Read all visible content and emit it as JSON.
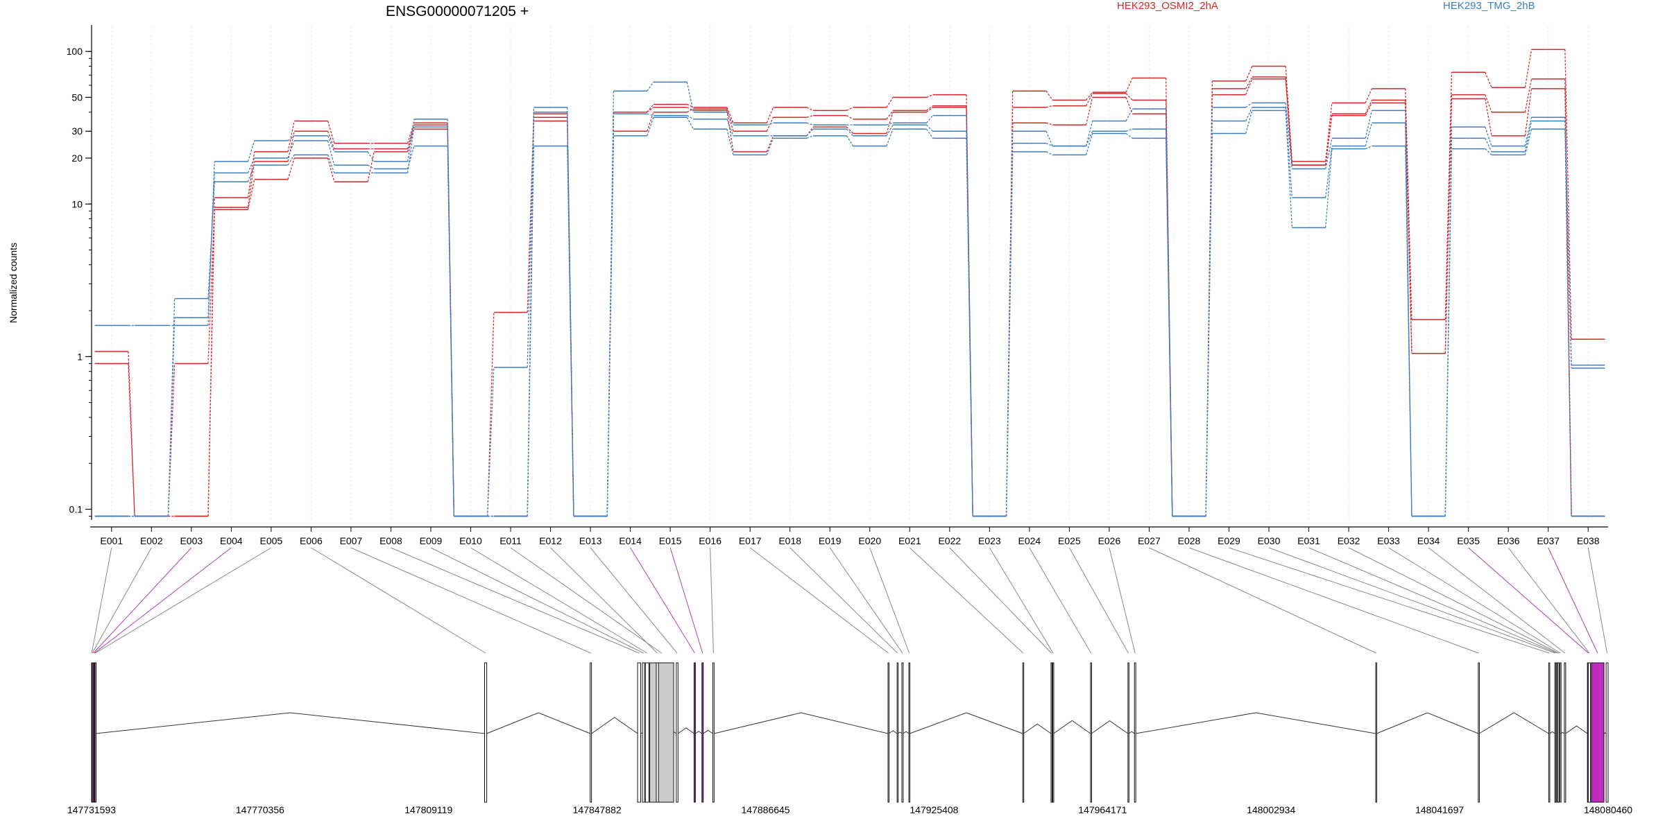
{
  "chart_data": {
    "type": "line",
    "title": "ENSG00000071205 +",
    "ylabel": "Normalized counts",
    "yscale": "log",
    "ylim": [
      0.085,
      140
    ],
    "y_ticks": [
      {
        "value": 0.1,
        "label": "0.1"
      },
      {
        "value": 1,
        "label": "1"
      },
      {
        "value": 10,
        "label": "10"
      },
      {
        "value": 20,
        "label": "20"
      },
      {
        "value": 30,
        "label": "30"
      },
      {
        "value": 50,
        "label": "50"
      },
      {
        "value": 100,
        "label": "100"
      }
    ],
    "categories": [
      "E001",
      "E002",
      "E003",
      "E004",
      "E005",
      "E006",
      "E007",
      "E008",
      "E009",
      "E010",
      "E011",
      "E012",
      "E013",
      "E014",
      "E015",
      "E016",
      "E017",
      "E018",
      "E019",
      "E020",
      "E021",
      "E022",
      "E023",
      "E024",
      "E025",
      "E026",
      "E027",
      "E028",
      "E029",
      "E030",
      "E031",
      "E032",
      "E033",
      "E034",
      "E035",
      "E036",
      "E037",
      "E038"
    ],
    "highlighted_exons": [
      "E003",
      "E004",
      "E014",
      "E015",
      "E035",
      "E037"
    ],
    "legend": [
      {
        "label": "HEK293_OSMI2_2hA",
        "color": "#d62728"
      },
      {
        "label": "HEK293_TMG_2hB",
        "color": "#3b7ec0"
      }
    ],
    "series": [
      {
        "group": "HEK293_OSMI2_2hA",
        "color": "#d62728",
        "values": [
          1.08,
          0.09,
          0.09,
          11,
          22,
          35,
          25,
          25,
          34,
          0.09,
          1.95,
          39,
          0.09,
          40,
          45,
          43,
          34,
          43,
          41,
          43,
          50,
          52,
          0.09,
          55,
          48,
          54,
          67,
          0.09,
          64,
          80,
          19,
          46,
          57,
          1.75,
          73,
          58,
          103,
          1.3
        ]
      },
      {
        "group": "HEK293_OSMI2_2hA",
        "color": "#d62728",
        "values": [
          0.9,
          0.09,
          0.9,
          9.5,
          19,
          30,
          23,
          23,
          33,
          0.09,
          0.09,
          37,
          0.09,
          30,
          40,
          42,
          30,
          37,
          38,
          36,
          41,
          44,
          0.09,
          43,
          44,
          53,
          48,
          0.09,
          57,
          68,
          18,
          39,
          48,
          1.05,
          52,
          40,
          66,
          0.09
        ]
      },
      {
        "group": "HEK293_OSMI2_2hA",
        "color": "#d62728",
        "values": [
          0.09,
          0.09,
          0.09,
          9.2,
          14.5,
          20,
          14,
          22,
          31,
          0.09,
          0.09,
          35,
          0.09,
          40,
          43,
          41,
          22,
          28,
          32,
          29,
          40,
          43,
          0.09,
          34,
          33,
          50,
          39,
          0.09,
          52,
          66,
          18,
          38,
          46,
          1.05,
          49,
          28,
          57,
          0.09
        ]
      },
      {
        "group": "HEK293_TMG_2hB",
        "color": "#3b7ec0",
        "values": [
          1.6,
          1.6,
          1.6,
          19,
          26,
          28,
          22,
          19,
          36,
          0.09,
          0.85,
          43,
          0.09,
          55,
          63,
          40,
          33,
          34,
          33,
          33,
          34,
          38,
          0.09,
          30,
          24,
          35,
          42,
          0.09,
          43,
          46,
          17,
          27,
          41,
          0.09,
          32,
          24,
          37,
          0.88
        ]
      },
      {
        "group": "HEK293_TMG_2hB",
        "color": "#3b7ec0",
        "values": [
          0.09,
          0.09,
          1.8,
          16,
          20,
          26,
          18,
          17,
          24,
          0.09,
          0.09,
          24,
          0.09,
          39,
          38,
          36,
          28,
          28,
          31,
          28,
          33,
          30,
          0.09,
          25,
          24,
          30,
          31,
          0.09,
          35,
          43,
          11,
          24,
          34,
          0.09,
          27,
          22,
          35,
          0.84
        ]
      },
      {
        "group": "HEK293_TMG_2hB",
        "color": "#3b7ec0",
        "values": [
          0.09,
          0.09,
          2.4,
          14,
          18,
          21,
          16,
          16,
          32,
          0.09,
          0.09,
          40,
          0.09,
          28,
          37,
          31,
          21,
          27,
          28,
          24,
          31,
          27,
          0.09,
          22,
          21,
          29,
          27,
          0.09,
          29,
          41,
          7,
          23,
          24,
          0.09,
          23,
          21,
          31,
          0.09
        ]
      }
    ]
  },
  "gene_model": {
    "coordinate_labels": [
      "147731593",
      "147770356",
      "147809119",
      "147847882",
      "147886645",
      "147925408",
      "147964171",
      "148002934",
      "148041697",
      "148080460"
    ],
    "exon_starts": [
      147731593,
      147731700,
      147731900,
      147732200,
      147732400,
      147822000,
      147846300,
      147857200,
      147858300,
      147859000,
      147860000,
      147861500,
      147866100,
      147870200,
      147872000,
      147874500,
      147914800,
      147916900,
      147918000,
      147919600,
      147945800,
      147952300,
      147952700,
      147961400,
      147970000,
      147971500,
      148027000,
      148050600,
      148066800,
      148068200,
      148068600,
      148068900,
      148069400,
      148070400,
      148075700,
      148075900,
      148076600,
      148080000
    ],
    "exon_ends": [
      147731650,
      147731800,
      147732100,
      147732300,
      147732500,
      147822500,
      147846600,
      147857900,
      147858800,
      147859800,
      147865500,
      147862000,
      147866500,
      147870500,
      147872300,
      147874800,
      147915000,
      147917100,
      147918300,
      147919800,
      147946000,
      147952500,
      147952900,
      147961600,
      147970200,
      147971800,
      148027200,
      148050800,
      148067000,
      148068400,
      148068800,
      148069200,
      148069600,
      148070700,
      148076200,
      148076400,
      148079500,
      148080460
    ]
  }
}
